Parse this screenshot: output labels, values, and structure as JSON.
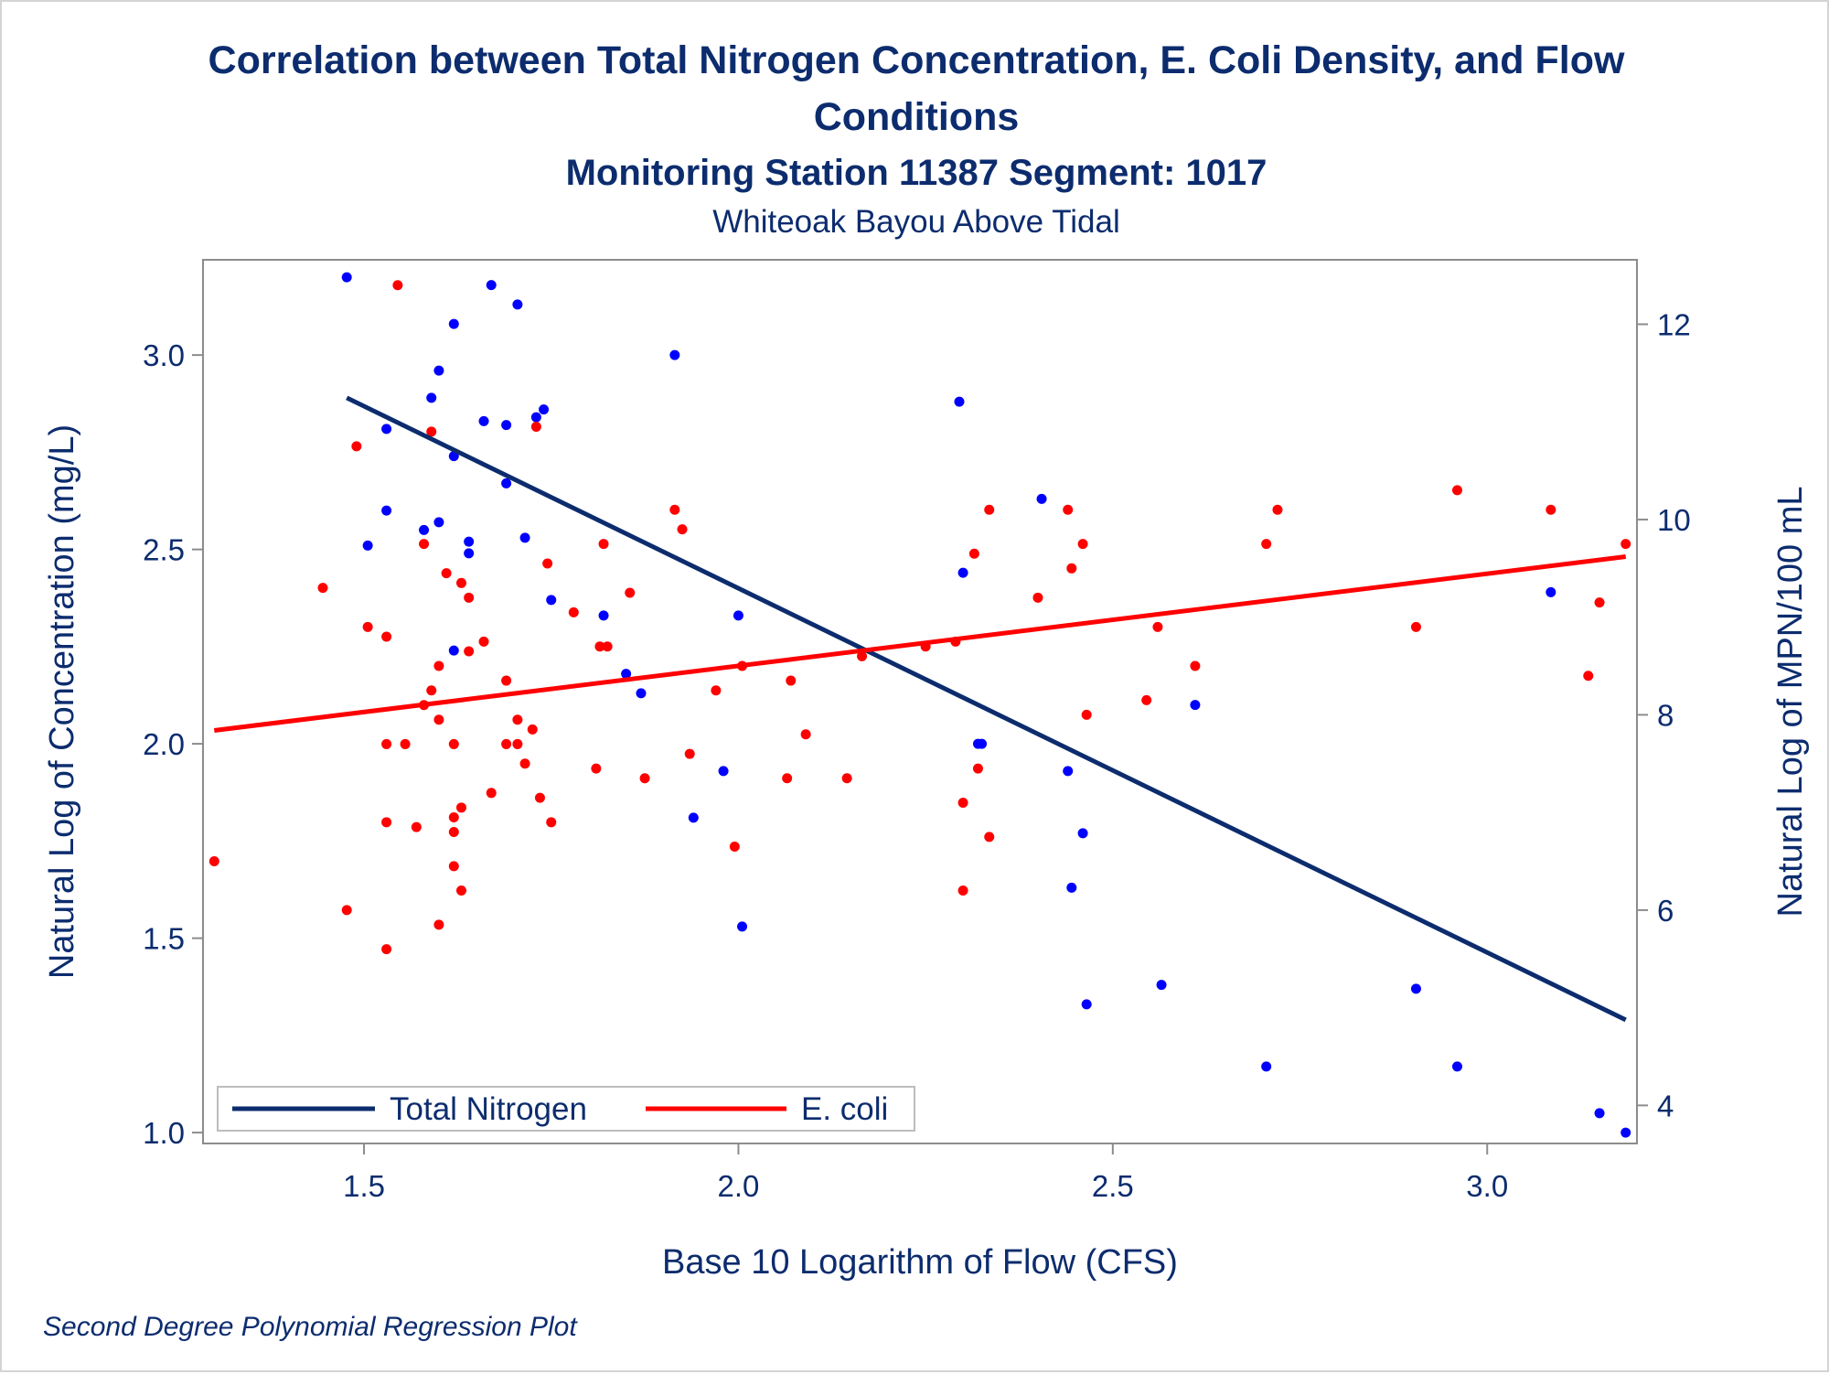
{
  "chart_data": {
    "type": "scatter",
    "title_line1": "Correlation between Total Nitrogen Concentration, E. Coli Density, and Flow",
    "title_line2": "Conditions",
    "subtitle": "Monitoring Station 11387 Segment: 1017",
    "subtitle2": "Whiteoak Bayou Above Tidal",
    "footnote": "Second Degree Polynomial Regression Plot",
    "xlabel": "Base 10 Logarithm of Flow (CFS)",
    "ylabel_left": "Natural Log of Concentration (mg/L)",
    "ylabel_right": "Natural Log of MPN/100 mL",
    "xlim": [
      1.285,
      3.2
    ],
    "ylim_left": [
      0.972,
      3.245
    ],
    "ylim_right": [
      3.61,
      12.66
    ],
    "xticks": [
      1.5,
      2.0,
      2.5,
      3.0
    ],
    "xtick_labels": [
      "1.5",
      "2.0",
      "2.5",
      "3.0"
    ],
    "yticks_left": [
      1.0,
      1.5,
      2.0,
      2.5,
      3.0
    ],
    "ytick_labels_left": [
      "1.0",
      "1.5",
      "2.0",
      "2.5",
      "3.0"
    ],
    "yticks_right": [
      4,
      6,
      8,
      10,
      12
    ],
    "ytick_labels_right": [
      "4",
      "6",
      "8",
      "10",
      "12"
    ],
    "legend_position": "bottom-left",
    "series": [
      {
        "name": "Total Nitrogen",
        "axis": "left",
        "color": "#0000ff",
        "line_color": "#0c2c6e",
        "fit_line": {
          "x": [
            1.477,
            3.185
          ],
          "y": [
            2.89,
            1.29
          ]
        },
        "points": [
          [
            1.477,
            3.2
          ],
          [
            1.53,
            2.81
          ],
          [
            1.53,
            2.6
          ],
          [
            1.505,
            2.51
          ],
          [
            1.58,
            2.55
          ],
          [
            1.59,
            2.89
          ],
          [
            1.6,
            2.96
          ],
          [
            1.6,
            2.57
          ],
          [
            1.62,
            3.08
          ],
          [
            1.62,
            2.74
          ],
          [
            1.62,
            2.24
          ],
          [
            1.64,
            2.52
          ],
          [
            1.64,
            2.49
          ],
          [
            1.66,
            2.83
          ],
          [
            1.67,
            3.18
          ],
          [
            1.69,
            2.82
          ],
          [
            1.69,
            2.67
          ],
          [
            1.705,
            3.13
          ],
          [
            1.715,
            2.53
          ],
          [
            1.73,
            2.84
          ],
          [
            1.74,
            2.86
          ],
          [
            1.75,
            2.37
          ],
          [
            1.82,
            2.33
          ],
          [
            1.85,
            2.18
          ],
          [
            1.87,
            2.13
          ],
          [
            1.915,
            3.0
          ],
          [
            1.94,
            1.81
          ],
          [
            1.98,
            1.93
          ],
          [
            2.0,
            2.33
          ],
          [
            2.005,
            1.53
          ],
          [
            2.295,
            2.88
          ],
          [
            2.3,
            2.44
          ],
          [
            2.32,
            2.0
          ],
          [
            2.325,
            2.0
          ],
          [
            2.405,
            2.63
          ],
          [
            2.44,
            1.93
          ],
          [
            2.445,
            1.63
          ],
          [
            2.46,
            1.77
          ],
          [
            2.465,
            1.33
          ],
          [
            2.565,
            1.38
          ],
          [
            2.61,
            2.1
          ],
          [
            2.705,
            1.17
          ],
          [
            2.905,
            1.37
          ],
          [
            2.96,
            1.17
          ],
          [
            3.085,
            2.39
          ],
          [
            3.15,
            1.05
          ],
          [
            3.185,
            1.0
          ]
        ]
      },
      {
        "name": "E. coli",
        "axis": "right",
        "color": "#ff0000",
        "line_color": "#ff0000",
        "fit_line": {
          "x": [
            1.3,
            3.185
          ],
          "y": [
            7.84,
            9.62
          ]
        },
        "points": [
          [
            1.3,
            6.5
          ],
          [
            1.445,
            9.3
          ],
          [
            1.477,
            6.0
          ],
          [
            1.49,
            10.75
          ],
          [
            1.505,
            8.9
          ],
          [
            1.53,
            8.8
          ],
          [
            1.53,
            7.7
          ],
          [
            1.53,
            6.9
          ],
          [
            1.53,
            5.6
          ],
          [
            1.545,
            12.4
          ],
          [
            1.555,
            7.7
          ],
          [
            1.57,
            6.85
          ],
          [
            1.58,
            9.75
          ],
          [
            1.58,
            8.1
          ],
          [
            1.59,
            10.9
          ],
          [
            1.59,
            8.25
          ],
          [
            1.59,
            3.8
          ],
          [
            1.6,
            8.5
          ],
          [
            1.6,
            7.95
          ],
          [
            1.6,
            5.85
          ],
          [
            1.61,
            9.45
          ],
          [
            1.62,
            7.7
          ],
          [
            1.62,
            6.95
          ],
          [
            1.62,
            6.8
          ],
          [
            1.62,
            6.45
          ],
          [
            1.63,
            9.35
          ],
          [
            1.63,
            7.05
          ],
          [
            1.63,
            6.2
          ],
          [
            1.64,
            9.2
          ],
          [
            1.64,
            8.65
          ],
          [
            1.66,
            8.75
          ],
          [
            1.67,
            7.2
          ],
          [
            1.69,
            8.35
          ],
          [
            1.69,
            7.7
          ],
          [
            1.705,
            7.95
          ],
          [
            1.705,
            7.7
          ],
          [
            1.715,
            7.5
          ],
          [
            1.725,
            7.85
          ],
          [
            1.73,
            10.95
          ],
          [
            1.735,
            7.15
          ],
          [
            1.745,
            9.55
          ],
          [
            1.75,
            6.9
          ],
          [
            1.78,
            9.05
          ],
          [
            1.81,
            7.45
          ],
          [
            1.815,
            8.7
          ],
          [
            1.82,
            9.75
          ],
          [
            1.825,
            8.7
          ],
          [
            1.855,
            9.25
          ],
          [
            1.875,
            7.35
          ],
          [
            1.915,
            10.1
          ],
          [
            1.925,
            9.9
          ],
          [
            1.935,
            7.6
          ],
          [
            1.97,
            8.25
          ],
          [
            1.995,
            6.65
          ],
          [
            2.005,
            8.5
          ],
          [
            2.065,
            7.35
          ],
          [
            2.07,
            8.35
          ],
          [
            2.09,
            7.8
          ],
          [
            2.145,
            7.35
          ],
          [
            2.165,
            8.6
          ],
          [
            2.25,
            8.7
          ],
          [
            2.29,
            8.75
          ],
          [
            2.3,
            7.1
          ],
          [
            2.3,
            6.2
          ],
          [
            2.315,
            9.65
          ],
          [
            2.32,
            7.45
          ],
          [
            2.335,
            10.1
          ],
          [
            2.335,
            6.75
          ],
          [
            2.4,
            9.2
          ],
          [
            2.44,
            10.1
          ],
          [
            2.445,
            9.5
          ],
          [
            2.46,
            9.75
          ],
          [
            2.465,
            8.0
          ],
          [
            2.545,
            8.15
          ],
          [
            2.56,
            8.9
          ],
          [
            2.61,
            8.5
          ],
          [
            2.705,
            9.75
          ],
          [
            2.72,
            10.1
          ],
          [
            2.905,
            8.9
          ],
          [
            2.96,
            10.3
          ],
          [
            3.085,
            10.1
          ],
          [
            3.135,
            8.4
          ],
          [
            3.15,
            9.15
          ],
          [
            3.185,
            9.75
          ]
        ]
      }
    ]
  }
}
